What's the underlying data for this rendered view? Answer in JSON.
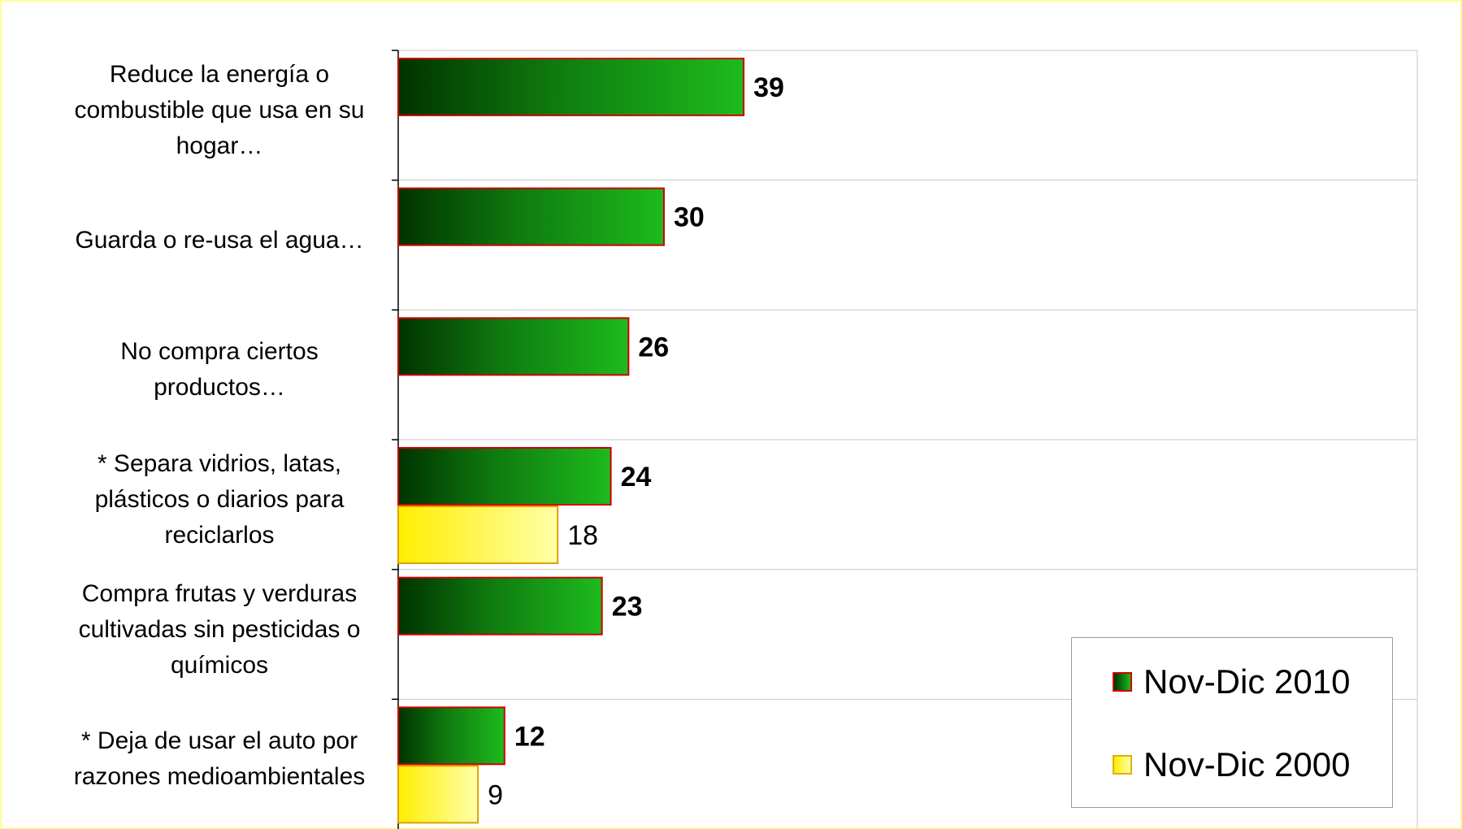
{
  "chart_data": {
    "type": "bar",
    "orientation": "horizontal",
    "categories": [
      "Reduce la energía o\ncombustible que usa en su\nhogar…",
      "Guarda o re-usa el agua…",
      "No compra ciertos\nproductos…",
      "* Separa vidrios, latas,\nplásticos o diarios para\nreciclarlos",
      "Compra frutas y verduras\ncultivadas sin pesticidas o\nquímicos",
      "* Deja de usar el auto por\nrazones medioambientales"
    ],
    "series": [
      {
        "name": "Nov-Dic 2010",
        "values": [
          39,
          30,
          26,
          24,
          23,
          12
        ],
        "color": "#1db31d"
      },
      {
        "name": "Nov-Dic 2000",
        "values": [
          null,
          null,
          null,
          18,
          null,
          9
        ],
        "color": "#ffff66"
      }
    ],
    "xlim": [
      0,
      100
    ],
    "grid": true,
    "legend_position": "bottom-right",
    "bar_border_color": "#d00000"
  }
}
